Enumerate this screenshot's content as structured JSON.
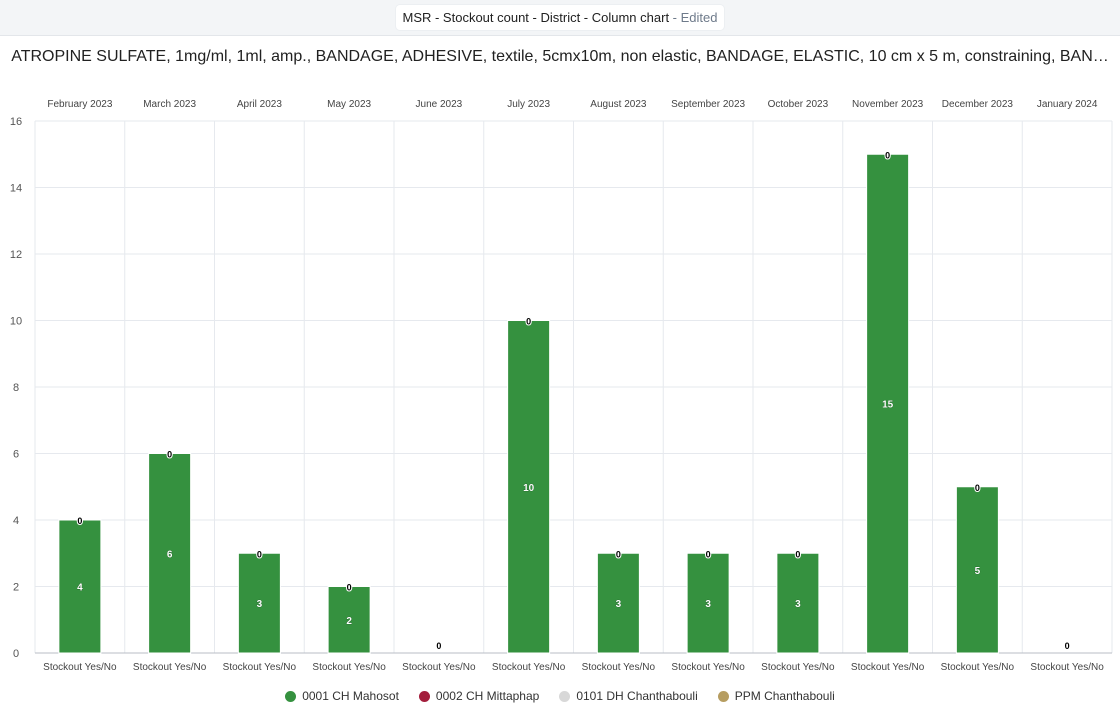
{
  "header": {
    "title": "MSR - Stockout count - District - Column chart",
    "edited": "Edited",
    "separator": " - "
  },
  "chart_data": {
    "type": "bar",
    "title": "ATROPINE SULFATE, 1mg/ml, 1ml, amp., BANDAGE, ADHESIVE, textile, 5cmx10m, non elastic, BANDAGE, ELASTIC, 10 cm x 5 m, constraining, BAN…",
    "panels": [
      "February 2023",
      "March 2023",
      "April 2023",
      "May 2023",
      "June 2023",
      "July 2023",
      "August 2023",
      "September 2023",
      "October 2023",
      "November 2023",
      "December 2023",
      "January 2024"
    ],
    "categories": [
      "Stockout Yes/No",
      "Stockout Yes/No",
      "Stockout Yes/No",
      "Stockout Yes/No",
      "Stockout Yes/No",
      "Stockout Yes/No",
      "Stockout Yes/No",
      "Stockout Yes/No",
      "Stockout Yes/No",
      "Stockout Yes/No",
      "Stockout Yes/No",
      "Stockout Yes/No"
    ],
    "series": [
      {
        "name": "0001 CH Mahosot",
        "color": "#35913f",
        "values": [
          4,
          6,
          3,
          2,
          0,
          10,
          3,
          3,
          3,
          15,
          5,
          0
        ]
      },
      {
        "name": "0002 CH Mittaphap",
        "color": "#a31e3c",
        "values": [
          0,
          0,
          0,
          0,
          0,
          0,
          0,
          0,
          0,
          0,
          0,
          0
        ]
      },
      {
        "name": "0101 DH Chanthabouli",
        "color": "#d8d8d8",
        "values": [
          0,
          0,
          0,
          0,
          0,
          0,
          0,
          0,
          0,
          0,
          0,
          0
        ]
      },
      {
        "name": "PPM Chanthabouli",
        "color": "#b69d61",
        "values": [
          0,
          0,
          0,
          0,
          0,
          0,
          0,
          0,
          0,
          0,
          0,
          0
        ]
      }
    ],
    "bar_labels": [
      "4",
      "6",
      "3",
      "2",
      "",
      "10",
      "3",
      "3",
      "3",
      "15",
      "5",
      ""
    ],
    "top_labels": [
      "0",
      "0",
      "0",
      "0",
      "0",
      "0",
      "0",
      "0",
      "0",
      "0",
      "0",
      "0"
    ],
    "ylim": [
      0,
      16
    ],
    "yticks": [
      0,
      2,
      4,
      6,
      8,
      10,
      12,
      14,
      16
    ],
    "grid": true,
    "legend_position": "bottom"
  }
}
